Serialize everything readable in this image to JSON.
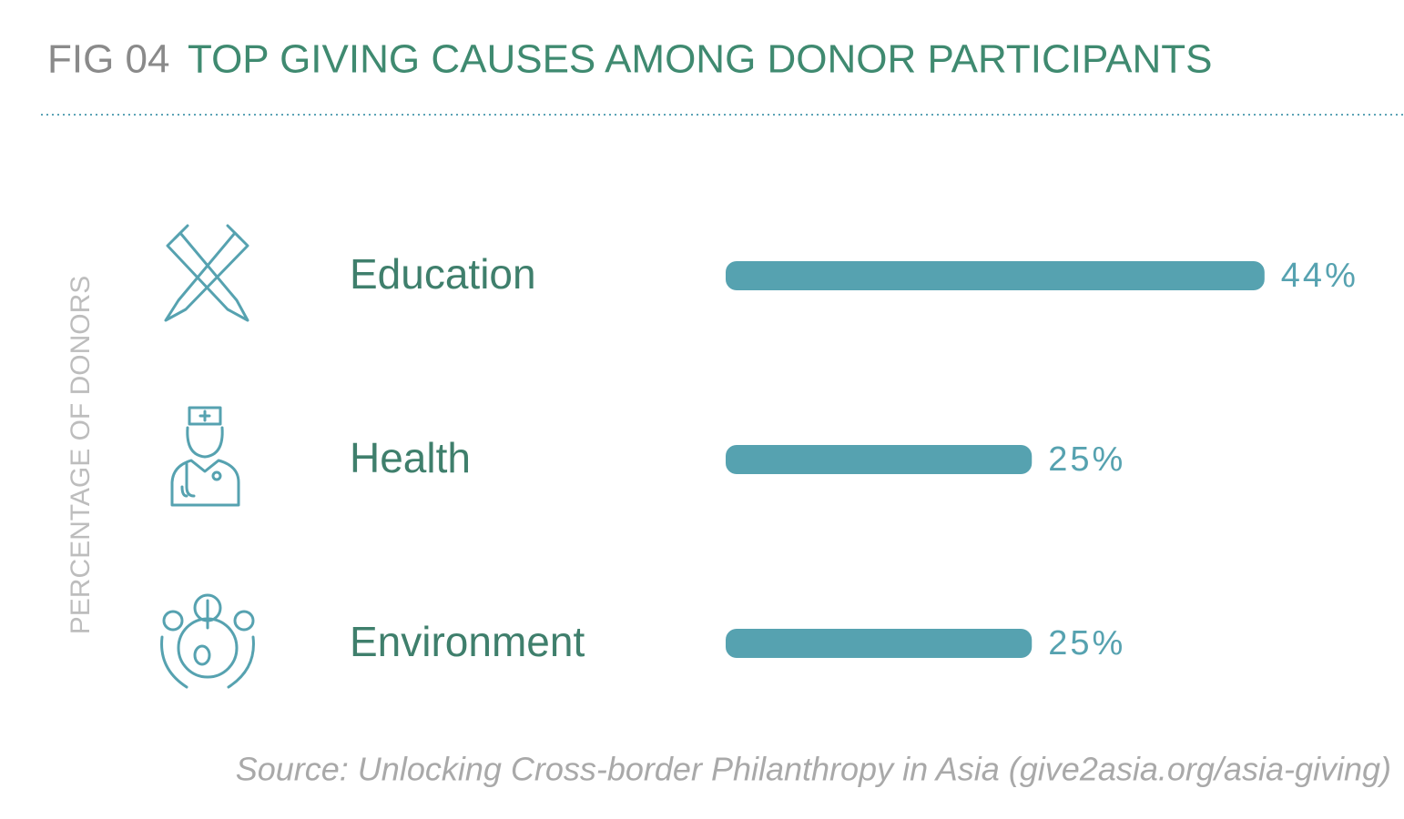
{
  "chart_data": {
    "type": "bar",
    "figure_label": "FIG 04",
    "title": "TOP GIVING CAUSES AMONG DONOR PARTICIPANTS",
    "y_axis_label": "PERCENTAGE OF DONORS",
    "categories": [
      "Education",
      "Health",
      "Environment"
    ],
    "values": [
      44,
      25,
      25
    ],
    "value_labels": [
      "44%",
      "25%",
      "25%"
    ],
    "color": "#56a2b0",
    "source": "Source: Unlocking Cross-border Philanthropy in Asia (give2asia.org/asia-giving)"
  }
}
